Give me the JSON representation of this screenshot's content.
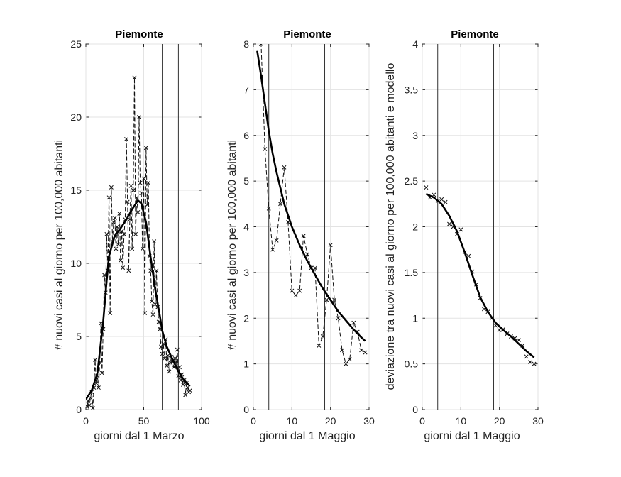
{
  "chart_data": [
    {
      "type": "line",
      "title": "Piemonte",
      "xlabel": "giorni dal 1 Marzo",
      "ylabel": "# nuovi casi al giorno per 100,000 abitanti",
      "xlim": [
        0,
        100
      ],
      "ylim": [
        0,
        25
      ],
      "xticks": [
        0,
        50,
        100
      ],
      "yticks": [
        0,
        5,
        10,
        15,
        20,
        25
      ],
      "grid": true,
      "vlines": [
        66,
        80
      ],
      "series": [
        {
          "style": "dashed-markers",
          "x": [
            1,
            2,
            3,
            4,
            5,
            6,
            7,
            8,
            9,
            10,
            11,
            12,
            13,
            14,
            15,
            16,
            17,
            18,
            19,
            20,
            21,
            22,
            23,
            24,
            25,
            26,
            27,
            28,
            29,
            30,
            31,
            32,
            33,
            34,
            35,
            36,
            37,
            38,
            39,
            40,
            41,
            42,
            43,
            44,
            45,
            46,
            47,
            48,
            49,
            50,
            51,
            52,
            53,
            54,
            55,
            56,
            57,
            58,
            59,
            60,
            61,
            62,
            63,
            64,
            65,
            66,
            67,
            68,
            69,
            70,
            71,
            72,
            73,
            74,
            75,
            76,
            77,
            78,
            79,
            80,
            81,
            82,
            83,
            84,
            85,
            86,
            87,
            88,
            89,
            90
          ],
          "y": [
            0.2,
            0.6,
            0.3,
            0.8,
            1.2,
            0.1,
            1.5,
            3.4,
            1.8,
            2.3,
            1.5,
            3.2,
            5.9,
            2.5,
            5.5,
            9.2,
            8.0,
            12.0,
            9.5,
            14.5,
            6.6,
            15.2,
            11.5,
            12.8,
            13.1,
            11.0,
            12.5,
            11.3,
            13.4,
            10.2,
            12.2,
            9.7,
            12.0,
            13.0,
            18.5,
            14.2,
            9.5,
            13.0,
            15.3,
            11.0,
            15.0,
            22.7,
            12.0,
            14.5,
            13.5,
            20.0,
            15.5,
            14.8,
            11.0,
            15.8,
            6.6,
            17.9,
            14.0,
            15.5,
            10.5,
            9.5,
            7.4,
            6.5,
            11.5,
            7.2,
            9.5,
            7.0,
            6.0,
            5.5,
            4.3,
            3.8,
            4.5,
            3.5,
            4.8,
            3.0,
            3.7,
            2.6,
            3.2,
            3.6,
            3.3,
            2.9,
            3.5,
            3.0,
            4.1,
            2.3,
            2.9,
            2.0,
            2.4,
            1.7,
            2.0,
            1.0,
            1.8,
            1.5,
            1.2,
            1.3
          ]
        },
        {
          "style": "solid-thick",
          "x": [
            0,
            5,
            10,
            15,
            18,
            20,
            25,
            30,
            35,
            40,
            45,
            48,
            52,
            56,
            60,
            64,
            66,
            70,
            75,
            80,
            85,
            90
          ],
          "y": [
            0.7,
            1.3,
            2.5,
            6.0,
            8.8,
            10.5,
            11.9,
            12.4,
            13.0,
            13.7,
            14.3,
            14.1,
            12.8,
            10.4,
            8.2,
            6.4,
            5.4,
            4.3,
            3.4,
            2.6,
            2.0,
            1.6
          ]
        }
      ]
    },
    {
      "type": "line",
      "title": "Piemonte",
      "xlabel": "giorni dal 1 Maggio",
      "ylabel": "# nuovi casi al giorno per 100,000 abitanti",
      "xlim": [
        0,
        30
      ],
      "ylim": [
        0,
        8
      ],
      "xticks": [
        0,
        10,
        20,
        30
      ],
      "yticks": [
        0,
        1,
        2,
        3,
        4,
        5,
        6,
        7,
        8
      ],
      "grid": true,
      "vlines": [
        4,
        18.5
      ],
      "series": [
        {
          "style": "dashed-markers",
          "x": [
            1,
            2,
            3,
            4,
            5,
            6,
            7,
            8,
            9,
            10,
            11,
            12,
            13,
            14,
            15,
            16,
            17,
            18,
            19,
            20,
            21,
            22,
            23,
            24,
            25,
            26,
            27,
            28,
            29
          ],
          "y": [
            8.3,
            8.0,
            5.7,
            4.4,
            3.5,
            3.7,
            4.5,
            5.3,
            4.1,
            2.6,
            2.5,
            2.6,
            3.8,
            3.4,
            3.1,
            3.1,
            1.4,
            1.6,
            2.4,
            3.6,
            2.4,
            2.0,
            1.3,
            1.0,
            1.1,
            1.9,
            1.7,
            1.3,
            1.25
          ]
        },
        {
          "style": "solid-thick",
          "x": [
            1,
            2,
            3,
            4,
            5,
            6,
            8,
            10,
            12,
            14,
            16,
            18,
            20,
            22,
            24,
            26,
            28,
            29
          ],
          "y": [
            7.85,
            7.3,
            6.7,
            6.1,
            5.6,
            5.2,
            4.5,
            4.0,
            3.6,
            3.25,
            2.95,
            2.65,
            2.4,
            2.15,
            1.95,
            1.75,
            1.58,
            1.5
          ]
        }
      ]
    },
    {
      "type": "line",
      "title": "Piemonte",
      "xlabel": "giorni dal 1 Maggio",
      "ylabel": "deviazione tra nuovi casi al giorno per 100,000 abitanti e modello",
      "xlim": [
        0,
        30
      ],
      "ylim": [
        0,
        4
      ],
      "xticks": [
        0,
        10,
        20,
        30
      ],
      "yticks": [
        0,
        0.5,
        1,
        1.5,
        2,
        2.5,
        3,
        3.5,
        4
      ],
      "yticklabels": [
        "0",
        "0.5",
        "1",
        "1.5",
        "2",
        "2.5",
        "3",
        "3.5",
        "4"
      ],
      "grid": true,
      "vlines": [
        4,
        18.5
      ],
      "series": [
        {
          "style": "markers",
          "x": [
            1,
            2,
            3,
            4,
            5,
            6,
            7,
            8,
            9,
            10,
            11,
            12,
            13,
            14,
            15,
            16,
            17,
            18,
            19,
            20,
            21,
            22,
            23,
            24,
            25,
            26,
            27,
            28,
            29
          ],
          "y": [
            2.43,
            2.32,
            2.35,
            2.28,
            2.3,
            2.27,
            2.03,
            2.0,
            1.92,
            1.97,
            1.72,
            1.68,
            1.51,
            1.37,
            1.22,
            1.1,
            1.07,
            1.0,
            0.92,
            0.87,
            0.88,
            0.83,
            0.8,
            0.78,
            0.76,
            0.7,
            0.58,
            0.52,
            0.5
          ]
        },
        {
          "style": "solid-thick",
          "x": [
            1,
            3,
            5,
            7,
            9,
            11,
            13,
            15,
            17,
            19,
            21,
            23,
            25,
            27,
            29
          ],
          "y": [
            2.36,
            2.32,
            2.25,
            2.12,
            1.95,
            1.72,
            1.47,
            1.23,
            1.07,
            0.95,
            0.87,
            0.8,
            0.72,
            0.64,
            0.57
          ]
        }
      ]
    }
  ]
}
